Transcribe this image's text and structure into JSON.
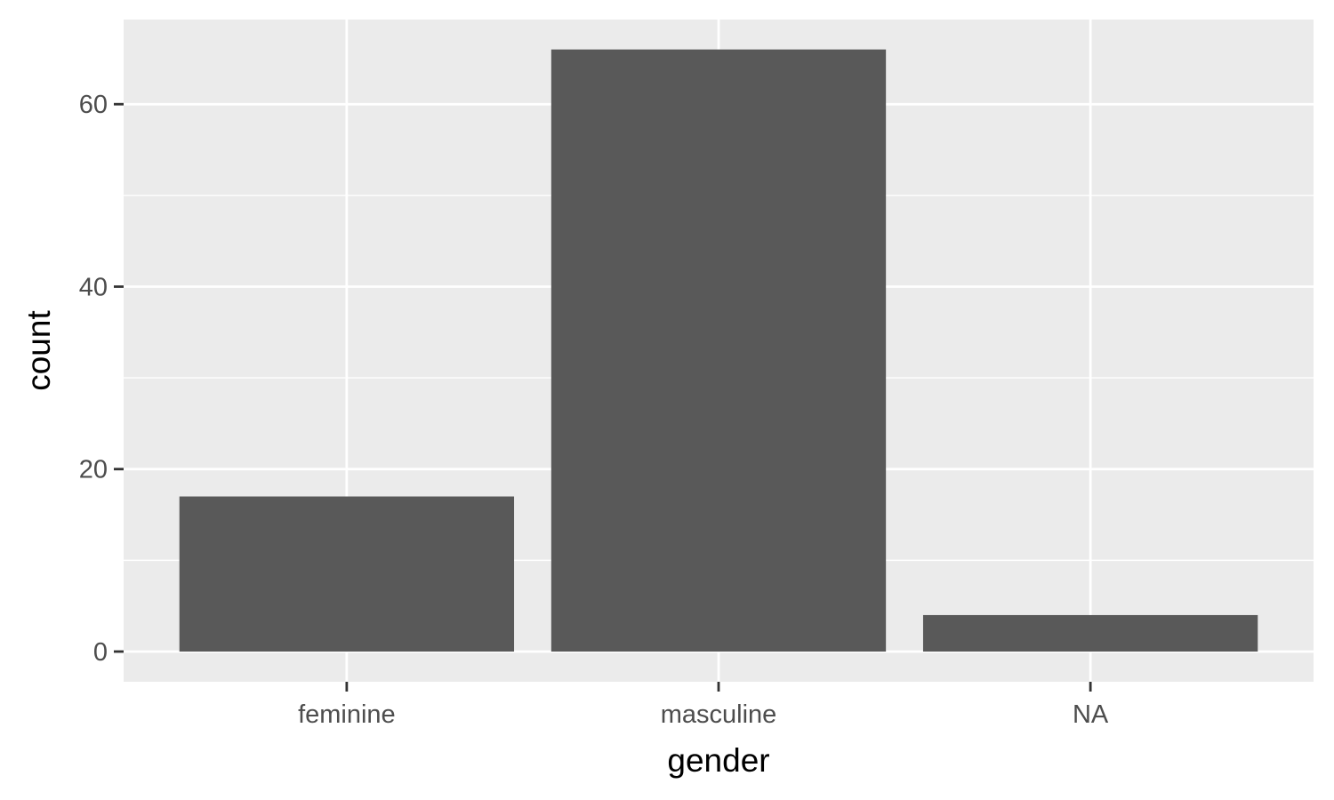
{
  "chart_data": {
    "type": "bar",
    "title": "",
    "xlabel": "gender",
    "ylabel": "count",
    "categories": [
      "feminine",
      "masculine",
      "NA"
    ],
    "values": [
      17,
      66,
      4
    ],
    "ylim": [
      0,
      69
    ],
    "yticks": [
      0,
      20,
      40,
      60
    ],
    "grid": true,
    "colors": {
      "panel_background": "#EBEBEB",
      "grid": "#FFFFFF",
      "bar": "#595959",
      "tick_text": "#4D4D4D",
      "axis_title": "#000000"
    }
  }
}
